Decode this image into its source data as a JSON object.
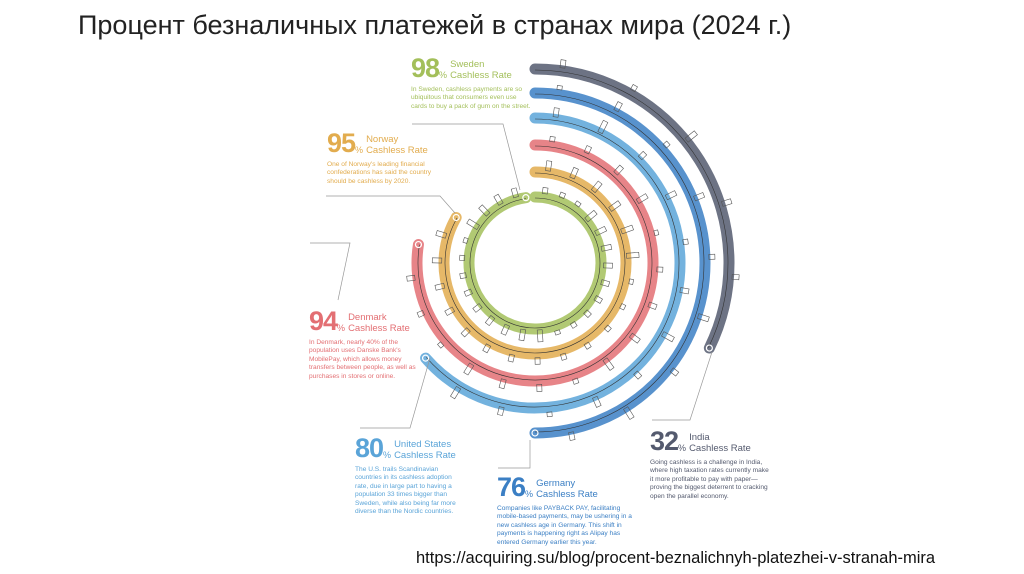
{
  "title": "Процент безналичных платежей в странах мира (2024 г.)",
  "source_url": "https://acquiring.su/blog/procent-beznalichnyh-platezhei-v-stranah-mira",
  "countries": [
    {
      "value": "98",
      "unit": "%",
      "country": "Sweden",
      "label": "Cashless Rate",
      "color": "#a3bf5a",
      "text": "In Sweden, cashless payments are so ubiquitous that consumers even use cards to buy a pack of gum on the street."
    },
    {
      "value": "95",
      "unit": "%",
      "country": "Norway",
      "label": "Cashless Rate",
      "color": "#e2ac4e",
      "text": "One of Norway's leading financial confederations has said the country should be cashless by 2020."
    },
    {
      "value": "94",
      "unit": "%",
      "country": "Denmark",
      "label": "Cashless Rate",
      "color": "#e36f73",
      "text": "In Denmark, nearly 40% of the population uses Danske Bank's MobilePay, which allows money transfers between people, as well as purchases in stores or online."
    },
    {
      "value": "80",
      "unit": "%",
      "country": "United States",
      "label": "Cashless Rate",
      "color": "#5aa4d8",
      "text": "The U.S. trails Scandinavian countries in its cashless adoption rate, due in large part to having a population 33 times bigger than Sweden, while also being far more diverse than the Nordic countries."
    },
    {
      "value": "76",
      "unit": "%",
      "country": "Germany",
      "label": "Cashless Rate",
      "color": "#3b7fc4",
      "text": "Companies like PAYBACK PAY, facilitating mobile-based payments, may be ushering in a new cashless age in Germany. This shift in payments is happening right as Alipay has entered Germany earlier this year."
    },
    {
      "value": "32",
      "unit": "%",
      "country": "India",
      "label": "Cashless Rate",
      "color": "#545a6e",
      "text": "Going cashless is a challenge in India, where high taxation rates currently make it more profitable to pay with paper—proving the biggest deterrent to cracking open the parallel economy."
    }
  ]
}
